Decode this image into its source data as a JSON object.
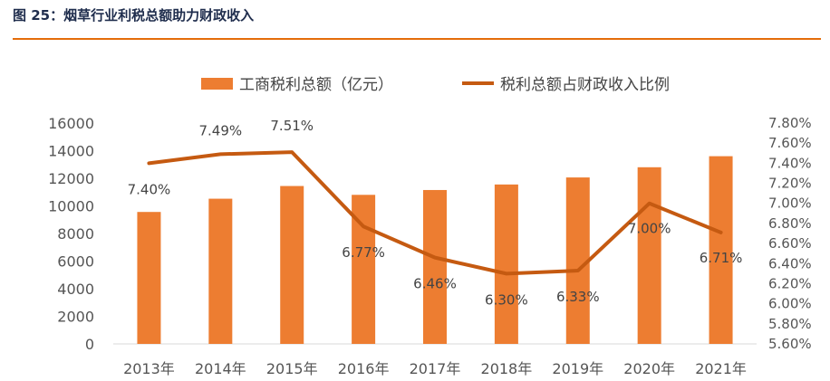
{
  "figure_title": "图 25：烟草行业利税总额助力财政收入",
  "colors": {
    "bar": "#ED7D31",
    "line": "#C55A11",
    "title": "#1F2D4D",
    "rule": "#E46C0A"
  },
  "chart_data": {
    "type": "bar",
    "categories": [
      "2013年",
      "2014年",
      "2015年",
      "2016年",
      "2017年",
      "2018年",
      "2019年",
      "2020年",
      "2021年"
    ],
    "series": [
      {
        "name": "工商税利总额（亿元）",
        "type": "bar",
        "axis": "left",
        "values": [
          9560,
          10520,
          11440,
          10800,
          11150,
          11550,
          12060,
          12800,
          13600
        ]
      },
      {
        "name": "税利总额占财政收入比例",
        "type": "line",
        "axis": "right",
        "values": [
          7.4,
          7.49,
          7.51,
          6.77,
          6.46,
          6.3,
          6.33,
          7.0,
          6.71
        ],
        "labels": [
          "7.40%",
          "7.49%",
          "7.51%",
          "6.77%",
          "6.46%",
          "6.30%",
          "6.33%",
          "7.00%",
          "6.71%"
        ]
      }
    ],
    "y_left": {
      "min": 0,
      "max": 16000,
      "ticks": [
        "0",
        "2000",
        "4000",
        "6000",
        "8000",
        "10000",
        "12000",
        "14000",
        "16000"
      ]
    },
    "y_right": {
      "min": 5.6,
      "max": 7.8,
      "ticks": [
        "5.60%",
        "5.80%",
        "6.00%",
        "6.20%",
        "6.40%",
        "6.60%",
        "6.80%",
        "7.00%",
        "7.20%",
        "7.40%",
        "7.60%",
        "7.80%"
      ]
    },
    "legend_position": "top",
    "grid": false
  }
}
